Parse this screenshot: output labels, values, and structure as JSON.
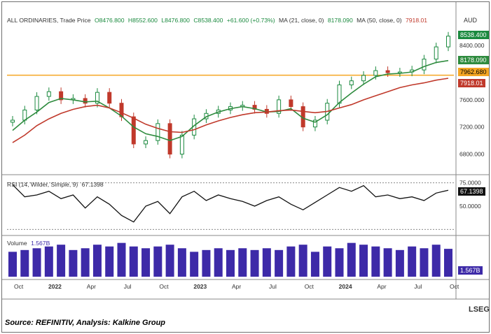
{
  "header": {
    "symbol": "ALL ORDINARIES, Trade Price",
    "open": "O8476.800",
    "high": "H8552.600",
    "low": "L8476.800",
    "close": "C8538.400",
    "change": "+61.600 (+0.73%)",
    "ma21_label": "MA (21, close, 0)",
    "ma21_value": "8178.090",
    "ma50_label": "MA (50, close, 0)",
    "ma50_value": "7918.01",
    "currency": "AUD"
  },
  "rsi_header": {
    "label": "RSI (14, Wilder, Simple, 9)",
    "value": "67.1398"
  },
  "volume_header": {
    "label": "Volume",
    "value": "1.567B"
  },
  "tags": {
    "price": "8538.400",
    "ma21": "8178.090",
    "hline": "7962.680",
    "ma50": "7918.01",
    "rsi": "67.1398",
    "volume": "1.567B"
  },
  "colors": {
    "up": "#1b8a3f",
    "down": "#c0392b",
    "ma21": "#2e8b3e",
    "ma50": "#c0392b",
    "hline": "#f5a623",
    "volume": "#3d2aa8",
    "rsi": "#111111"
  },
  "source": "Source: REFINITIV, Analysis: Kalkine Group",
  "logo": "LSEG",
  "chart_data": {
    "type": "line",
    "price_axis": {
      "ticks": [
        "8400.000",
        "7600.000",
        "7200.000",
        "6800.000"
      ],
      "tick_values": [
        8400,
        7600,
        7200,
        6800
      ],
      "ylim": [
        6600,
        8700
      ]
    },
    "rsi_axis": {
      "ticks": [
        "75.0000",
        "50.0000"
      ],
      "tick_values": [
        75,
        50
      ],
      "ylim": [
        20,
        80
      ]
    },
    "x_ticks": [
      "Oct",
      "2022",
      "Apr",
      "Jul",
      "Oct",
      "2023",
      "Apr",
      "Jul",
      "Oct",
      "2024",
      "Apr",
      "Jul",
      "Oct"
    ],
    "x_tick_pos": [
      0.5,
      3.5,
      6.5,
      9.5,
      12.5,
      15.5,
      18.5,
      21.5,
      24.5,
      27.5,
      30.5,
      33.5,
      36.5
    ],
    "n_points": 37,
    "series": [
      {
        "name": "Trade Price",
        "values": [
          7300,
          7450,
          7650,
          7720,
          7600,
          7620,
          7550,
          7710,
          7550,
          7350,
          6950,
          7000,
          7250,
          6800,
          7080,
          7320,
          7400,
          7450,
          7500,
          7520,
          7460,
          7400,
          7600,
          7500,
          7200,
          7300,
          7550,
          7820,
          7880,
          7960,
          8030,
          8000,
          8010,
          8040,
          8200,
          8380,
          8538
        ]
      },
      {
        "name": "MA (21, close, 0)",
        "values": [
          7150,
          7300,
          7420,
          7560,
          7620,
          7600,
          7570,
          7580,
          7480,
          7360,
          7200,
          7100,
          7060,
          7000,
          7060,
          7220,
          7350,
          7420,
          7470,
          7500,
          7470,
          7420,
          7430,
          7470,
          7330,
          7270,
          7380,
          7560,
          7700,
          7830,
          7940,
          7980,
          7990,
          8010,
          8090,
          8150,
          8178
        ]
      },
      {
        "name": "MA (50, close, 0)",
        "values": [
          6970,
          7080,
          7220,
          7320,
          7400,
          7460,
          7500,
          7520,
          7480,
          7410,
          7330,
          7240,
          7180,
          7130,
          7120,
          7160,
          7230,
          7290,
          7340,
          7380,
          7410,
          7420,
          7440,
          7450,
          7430,
          7410,
          7430,
          7480,
          7530,
          7600,
          7660,
          7720,
          7780,
          7820,
          7850,
          7890,
          7918
        ]
      },
      {
        "name": "RSI (14, Wilder, Simple, 9)",
        "values": [
          73,
          60,
          62,
          66,
          58,
          62,
          48,
          60,
          52,
          40,
          33,
          50,
          55,
          42,
          60,
          66,
          56,
          62,
          58,
          55,
          50,
          56,
          60,
          52,
          46,
          54,
          62,
          70,
          66,
          72,
          60,
          62,
          58,
          60,
          56,
          64,
          67
        ]
      },
      {
        "name": "Volume",
        "values": [
          1.4,
          1.5,
          1.6,
          1.7,
          1.8,
          1.5,
          1.6,
          1.8,
          1.7,
          1.9,
          1.7,
          1.6,
          1.7,
          1.8,
          1.6,
          1.4,
          1.5,
          1.6,
          1.5,
          1.6,
          1.5,
          1.6,
          1.5,
          1.7,
          1.8,
          1.4,
          1.7,
          1.6,
          1.9,
          1.8,
          1.7,
          1.6,
          1.5,
          1.7,
          1.6,
          1.8,
          1.567
        ]
      }
    ],
    "hline": {
      "value": 7962.68
    }
  }
}
